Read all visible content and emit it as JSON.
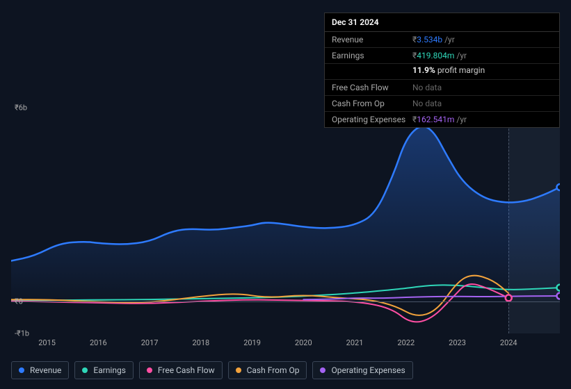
{
  "background_color": "#0d1421",
  "text_color": "#e0e6ed",
  "tooltip": {
    "date": "Dec 31 2024",
    "rows": [
      {
        "key": "revenue",
        "label": "Revenue",
        "valueText": "3.534b",
        "suffix": "/yr",
        "color": "#2e7bff"
      },
      {
        "key": "earnings",
        "label": "Earnings",
        "valueText": "419.804m",
        "suffix": "/yr",
        "color": "#2fd7b9"
      },
      {
        "key": "earnings_sub",
        "pctText": "11.9%",
        "subText": "profit margin"
      },
      {
        "key": "fcf",
        "label": "Free Cash Flow",
        "noData": "No data"
      },
      {
        "key": "cfo",
        "label": "Cash From Op",
        "noData": "No data"
      },
      {
        "key": "opex",
        "label": "Operating Expenses",
        "valueText": "162.541m",
        "suffix": "/yr",
        "color": "#a463f2"
      }
    ],
    "currencySymbol": "₹"
  },
  "axes": {
    "ylim": [
      -1.0,
      6.0
    ],
    "yticks": [
      {
        "v": 6.0,
        "label": "₹6b"
      },
      {
        "v": 0.0,
        "label": "₹0"
      },
      {
        "v": -1.0,
        "label": "-₹1b"
      }
    ],
    "xlim": [
      2014.3,
      2025.0
    ],
    "xticks": [
      2015,
      2016,
      2017,
      2018,
      2019,
      2020,
      2021,
      2022,
      2023,
      2024
    ],
    "zero_line_y": 0,
    "grid_color": "#4a5568",
    "label_color": "#aaa",
    "label_fontsize": 11
  },
  "forecast_start_x": 2024.0,
  "series": [
    {
      "key": "revenue",
      "name": "Revenue",
      "color": "#2e7bff",
      "lineWidth": 2.5,
      "fill": true,
      "fillOpacity": 0.28,
      "points": [
        [
          2014.3,
          1.25
        ],
        [
          2014.75,
          1.4
        ],
        [
          2015.25,
          1.8
        ],
        [
          2015.75,
          1.85
        ],
        [
          2016.0,
          1.8
        ],
        [
          2016.5,
          1.75
        ],
        [
          2017.0,
          1.85
        ],
        [
          2017.4,
          2.15
        ],
        [
          2017.75,
          2.25
        ],
        [
          2018.25,
          2.2
        ],
        [
          2018.75,
          2.3
        ],
        [
          2019.0,
          2.35
        ],
        [
          2019.25,
          2.45
        ],
        [
          2019.6,
          2.4
        ],
        [
          2020.0,
          2.3
        ],
        [
          2020.5,
          2.25
        ],
        [
          2021.0,
          2.35
        ],
        [
          2021.4,
          2.7
        ],
        [
          2021.75,
          3.9
        ],
        [
          2022.0,
          5.05
        ],
        [
          2022.3,
          5.5
        ],
        [
          2022.55,
          5.25
        ],
        [
          2022.8,
          4.5
        ],
        [
          2023.1,
          3.7
        ],
        [
          2023.5,
          3.2
        ],
        [
          2023.9,
          3.05
        ],
        [
          2024.3,
          3.08
        ],
        [
          2024.7,
          3.3
        ],
        [
          2025.0,
          3.534
        ]
      ]
    },
    {
      "key": "earnings",
      "name": "Earnings",
      "color": "#2fd7b9",
      "lineWidth": 2,
      "fill": false,
      "points": [
        [
          2014.3,
          0.02
        ],
        [
          2015.0,
          0.03
        ],
        [
          2016.0,
          0.04
        ],
        [
          2017.0,
          0.05
        ],
        [
          2018.0,
          0.08
        ],
        [
          2019.0,
          0.1
        ],
        [
          2020.0,
          0.15
        ],
        [
          2021.0,
          0.25
        ],
        [
          2021.7,
          0.35
        ],
        [
          2022.0,
          0.4
        ],
        [
          2022.5,
          0.5
        ],
        [
          2023.0,
          0.5
        ],
        [
          2023.5,
          0.42
        ],
        [
          2024.0,
          0.35
        ],
        [
          2024.5,
          0.38
        ],
        [
          2025.0,
          0.42
        ]
      ]
    },
    {
      "key": "fcf",
      "name": "Free Cash Flow",
      "color": "#ff4fa3",
      "lineWidth": 2,
      "fill": false,
      "points": [
        [
          2014.3,
          0.0
        ],
        [
          2015.0,
          -0.02
        ],
        [
          2016.0,
          -0.05
        ],
        [
          2017.0,
          -0.08
        ],
        [
          2018.0,
          0.0
        ],
        [
          2019.0,
          0.05
        ],
        [
          2020.0,
          0.02
        ],
        [
          2021.0,
          0.0
        ],
        [
          2021.7,
          -0.2
        ],
        [
          2022.1,
          -0.7
        ],
        [
          2022.5,
          -0.55
        ],
        [
          2022.9,
          0.1
        ],
        [
          2023.2,
          0.6
        ],
        [
          2023.6,
          0.4
        ],
        [
          2024.0,
          0.1
        ]
      ]
    },
    {
      "key": "cfo",
      "name": "Cash From Op",
      "color": "#f2a23c",
      "lineWidth": 2,
      "fill": false,
      "points": [
        [
          2014.3,
          0.05
        ],
        [
          2015.0,
          0.05
        ],
        [
          2016.0,
          -0.02
        ],
        [
          2017.0,
          -0.05
        ],
        [
          2018.0,
          0.15
        ],
        [
          2018.7,
          0.25
        ],
        [
          2019.3,
          0.1
        ],
        [
          2020.0,
          0.2
        ],
        [
          2020.7,
          0.1
        ],
        [
          2021.3,
          0.05
        ],
        [
          2021.8,
          -0.15
        ],
        [
          2022.2,
          -0.5
        ],
        [
          2022.6,
          -0.3
        ],
        [
          2023.0,
          0.6
        ],
        [
          2023.3,
          0.85
        ],
        [
          2023.7,
          0.65
        ],
        [
          2024.0,
          0.25
        ]
      ]
    },
    {
      "key": "opex",
      "name": "Operating Expenses",
      "color": "#a463f2",
      "lineWidth": 2,
      "fill": false,
      "points": [
        [
          2020.0,
          0.05
        ],
        [
          2020.5,
          0.06
        ],
        [
          2021.0,
          0.1
        ],
        [
          2021.5,
          0.09
        ],
        [
          2022.0,
          0.12
        ],
        [
          2022.5,
          0.14
        ],
        [
          2023.0,
          0.15
        ],
        [
          2023.5,
          0.14
        ],
        [
          2024.0,
          0.15
        ],
        [
          2024.5,
          0.16
        ],
        [
          2025.0,
          0.163
        ]
      ]
    }
  ],
  "end_markers": [
    {
      "series": "revenue",
      "x": 2025.0,
      "y": 3.534
    },
    {
      "series": "earnings",
      "x": 2025.0,
      "y": 0.42
    },
    {
      "series": "fcf",
      "x": 2024.0,
      "y": 0.1
    },
    {
      "series": "opex",
      "x": 2025.0,
      "y": 0.163
    }
  ],
  "legend": [
    {
      "key": "revenue",
      "label": "Revenue",
      "color": "#2e7bff"
    },
    {
      "key": "earnings",
      "label": "Earnings",
      "color": "#2fd7b9"
    },
    {
      "key": "fcf",
      "label": "Free Cash Flow",
      "color": "#ff4fa3"
    },
    {
      "key": "cfo",
      "label": "Cash From Op",
      "color": "#f2a23c"
    },
    {
      "key": "opex",
      "label": "Operating Expenses",
      "color": "#a463f2"
    }
  ]
}
